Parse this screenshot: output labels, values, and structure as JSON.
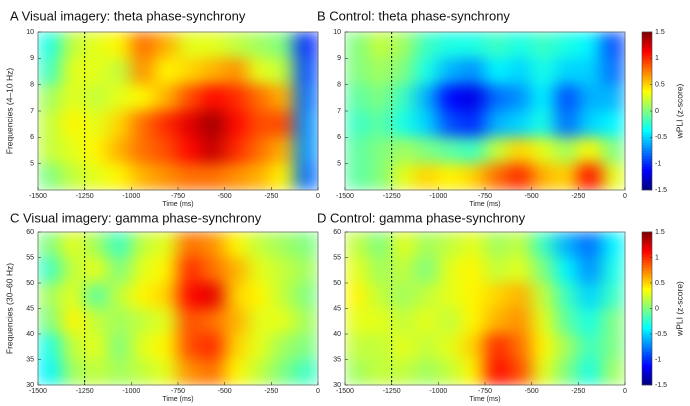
{
  "chart_data": [
    {
      "type": "heatmap",
      "title": "A  Visual imagery: theta phase-synchrony",
      "xlabel": "Time (ms)",
      "ylabel": "Frequencies (4–10 Hz)",
      "xlim": [
        -1500,
        0
      ],
      "xticks": [
        -1500,
        -1250,
        -1000,
        -750,
        -500,
        -250,
        0
      ],
      "ylim": [
        4,
        10
      ],
      "yticks": [
        5,
        6,
        7,
        8,
        9,
        10
      ],
      "colormap": "jet",
      "clim": [
        -1.5,
        1.5
      ],
      "vline": -1250,
      "z": [
        [
          -0.3,
          0.2,
          0.3,
          0.4,
          0.8,
          0.6,
          0.3,
          0.3,
          0.2,
          0.1,
          0.0,
          -1.0
        ],
        [
          -0.2,
          0.3,
          0.3,
          0.2,
          0.7,
          0.4,
          0.5,
          0.6,
          0.7,
          0.3,
          0.2,
          -0.9
        ],
        [
          0.1,
          0.3,
          0.2,
          0.3,
          0.4,
          0.6,
          0.9,
          1.1,
          1.0,
          0.8,
          0.6,
          -0.8
        ],
        [
          0.2,
          0.4,
          0.3,
          0.5,
          0.8,
          1.0,
          1.2,
          1.4,
          1.1,
          0.9,
          0.9,
          -0.7
        ],
        [
          0.2,
          0.3,
          0.4,
          0.6,
          0.8,
          0.9,
          1.1,
          1.3,
          1.0,
          0.8,
          0.6,
          -0.7
        ],
        [
          0.0,
          0.2,
          0.3,
          0.4,
          0.6,
          0.7,
          0.8,
          0.8,
          0.7,
          0.6,
          0.4,
          -0.8
        ]
      ]
    },
    {
      "type": "heatmap",
      "title": "B  Control: theta phase-synchrony",
      "xlabel": "Time (ms)",
      "xlim": [
        -1500,
        0
      ],
      "xticks": [
        -1500,
        -1250,
        -1000,
        -750,
        -500,
        -250,
        0
      ],
      "ylim": [
        4,
        10
      ],
      "yticks": [
        5,
        6,
        7,
        8,
        9,
        10
      ],
      "colormap": "jet",
      "clim": [
        -1.5,
        1.5
      ],
      "vline": -1250,
      "colorbar": {
        "label": "wPLI (z-score)",
        "ticks": [
          -1.5,
          -1,
          -0.5,
          0,
          0.5,
          1,
          1.5
        ]
      },
      "z": [
        [
          0.0,
          0.2,
          0.1,
          -0.2,
          -0.3,
          -0.3,
          -0.2,
          -0.3,
          -0.2,
          -0.3,
          -0.4,
          -0.9
        ],
        [
          0.0,
          0.1,
          0.0,
          -0.3,
          -0.6,
          -0.7,
          -0.4,
          -0.5,
          -0.3,
          -0.5,
          -0.5,
          -0.8
        ],
        [
          -0.1,
          0.0,
          -0.2,
          -0.6,
          -1.1,
          -1.2,
          -0.8,
          -0.7,
          -0.4,
          -0.9,
          -0.6,
          -0.6
        ],
        [
          -0.2,
          -0.1,
          -0.3,
          -0.5,
          -0.9,
          -1.0,
          -0.6,
          -0.5,
          -0.3,
          -0.8,
          -0.5,
          -0.4
        ],
        [
          -0.1,
          0.0,
          0.1,
          0.0,
          -0.1,
          -0.2,
          0.2,
          0.5,
          0.3,
          0.1,
          0.4,
          0.0
        ],
        [
          -0.1,
          0.0,
          0.3,
          0.5,
          0.4,
          0.5,
          0.8,
          1.0,
          0.6,
          0.5,
          1.1,
          0.3
        ]
      ]
    },
    {
      "type": "heatmap",
      "title": "C  Visual imagery: gamma phase-synchrony",
      "xlabel": "Time (ms)",
      "ylabel": "Frequencies (30–60 Hz)",
      "xlim": [
        -1500,
        0
      ],
      "xticks": [
        -1500,
        -1250,
        -1000,
        -750,
        -500,
        -250,
        0
      ],
      "ylim": [
        30,
        60
      ],
      "yticks": [
        30,
        35,
        40,
        45,
        50,
        55,
        60
      ],
      "colormap": "jet",
      "clim": [
        -1.5,
        1.5
      ],
      "vline": -1250,
      "z": [
        [
          0.0,
          0.3,
          0.1,
          -0.2,
          0.2,
          0.3,
          0.8,
          0.7,
          0.4,
          0.2,
          0.1,
          0.0
        ],
        [
          -0.2,
          0.2,
          0.3,
          0.0,
          0.3,
          0.4,
          1.0,
          0.8,
          0.6,
          0.3,
          0.2,
          0.1
        ],
        [
          0.1,
          0.3,
          -0.1,
          0.2,
          0.4,
          0.5,
          1.1,
          1.2,
          0.5,
          0.4,
          0.2,
          0.0
        ],
        [
          0.0,
          0.4,
          0.2,
          0.1,
          0.2,
          0.3,
          0.9,
          0.8,
          0.6,
          0.3,
          0.3,
          0.1
        ],
        [
          -0.3,
          0.2,
          0.3,
          0.0,
          0.3,
          0.4,
          0.9,
          1.0,
          0.5,
          0.3,
          0.1,
          0.0
        ],
        [
          -0.4,
          0.1,
          0.2,
          0.1,
          0.2,
          0.3,
          0.7,
          0.8,
          0.4,
          0.2,
          0.0,
          -0.2
        ]
      ]
    },
    {
      "type": "heatmap",
      "title": "D  Control: gamma phase-synchrony",
      "xlabel": "Time (ms)",
      "xlim": [
        -1500,
        0
      ],
      "xticks": [
        -1500,
        -1250,
        -1000,
        -750,
        -500,
        -250,
        0
      ],
      "ylim": [
        30,
        60
      ],
      "yticks": [
        30,
        35,
        40,
        45,
        50,
        55,
        60
      ],
      "colormap": "jet",
      "clim": [
        -1.5,
        1.5
      ],
      "vline": -1250,
      "colorbar": {
        "label": "wPLI (z-score)",
        "ticks": [
          -1.5,
          -1,
          -0.5,
          0,
          0.5,
          1,
          1.5
        ]
      },
      "z": [
        [
          0.2,
          0.0,
          0.3,
          0.1,
          0.2,
          0.3,
          0.1,
          0.2,
          -0.2,
          -0.6,
          -0.8,
          -0.4
        ],
        [
          0.3,
          0.1,
          0.2,
          0.0,
          0.3,
          0.4,
          0.2,
          0.3,
          0.0,
          -0.4,
          -0.7,
          -0.3
        ],
        [
          0.4,
          0.2,
          0.1,
          0.2,
          0.3,
          0.4,
          0.5,
          0.6,
          0.2,
          -0.2,
          -0.5,
          -0.2
        ],
        [
          0.3,
          0.3,
          0.2,
          0.3,
          0.2,
          0.4,
          0.6,
          0.7,
          0.3,
          -0.1,
          -0.3,
          0.0
        ],
        [
          0.2,
          0.2,
          0.3,
          0.2,
          0.3,
          0.5,
          1.0,
          0.8,
          0.4,
          0.1,
          -0.2,
          0.0
        ],
        [
          0.1,
          0.2,
          0.2,
          0.1,
          0.2,
          0.4,
          1.1,
          0.9,
          0.3,
          0.0,
          -0.3,
          0.1
        ]
      ]
    }
  ]
}
